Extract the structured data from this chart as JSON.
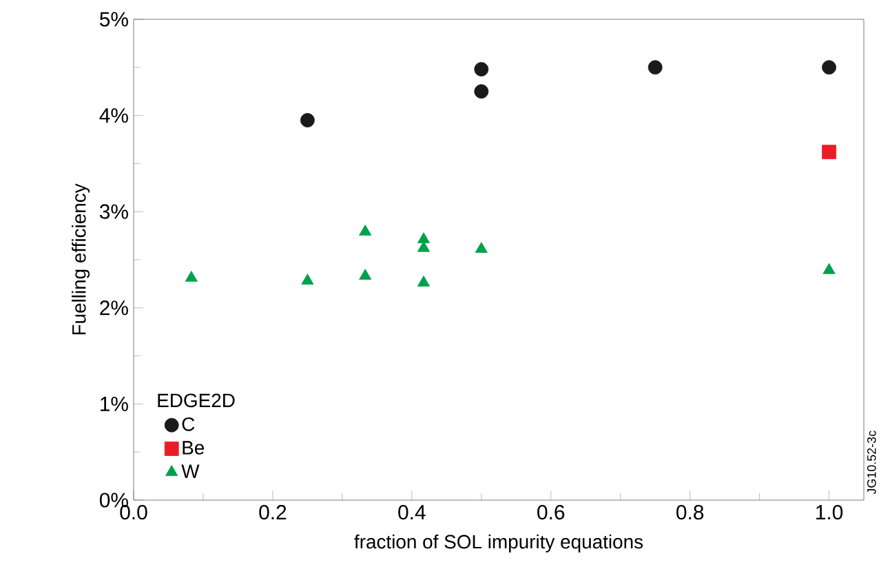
{
  "chart_data": {
    "type": "scatter",
    "xlabel": "fraction of SOL impurity equations",
    "ylabel": "Fuelling efficiency",
    "legend_title": "EDGE2D",
    "legend": "bottom left",
    "grid": false,
    "xlim": [
      0,
      1.05
    ],
    "xticks": [
      {
        "value": 0,
        "label": "0.0"
      },
      0.2,
      0.4,
      0.6,
      0.8,
      {
        "value": 1,
        "label": "1.0"
      }
    ],
    "ylim": [
      0,
      5
    ],
    "yticks": [
      {
        "value": 0,
        "label": "0%"
      },
      {
        "value": 1,
        "label": "1%"
      },
      {
        "value": 2,
        "label": "2%"
      },
      {
        "value": 3,
        "label": "3%"
      },
      {
        "value": 4,
        "label": "4%"
      },
      {
        "value": 5,
        "label": "5%"
      }
    ],
    "annotations": [
      "JG10.52-3c"
    ],
    "series": [
      {
        "name": "C",
        "color": "#1a1a1a",
        "marker": "circle",
        "x": [
          0.25,
          0.5,
          0.5,
          0.75,
          1.0
        ],
        "values": [
          3.95,
          4.48,
          4.25,
          4.5,
          4.5
        ]
      },
      {
        "name": "Be",
        "color": "#ec1c24",
        "marker": "square",
        "x": [
          1.0
        ],
        "values": [
          3.62
        ]
      },
      {
        "name": "W",
        "color": "#00a14b",
        "marker": "triangle",
        "x": [
          0.083,
          0.25,
          0.333,
          0.333,
          0.417,
          0.417,
          0.417,
          0.5,
          1.0
        ],
        "values": [
          2.31,
          2.28,
          2.33,
          2.79,
          2.71,
          2.62,
          2.26,
          2.61,
          2.39
        ]
      }
    ]
  }
}
